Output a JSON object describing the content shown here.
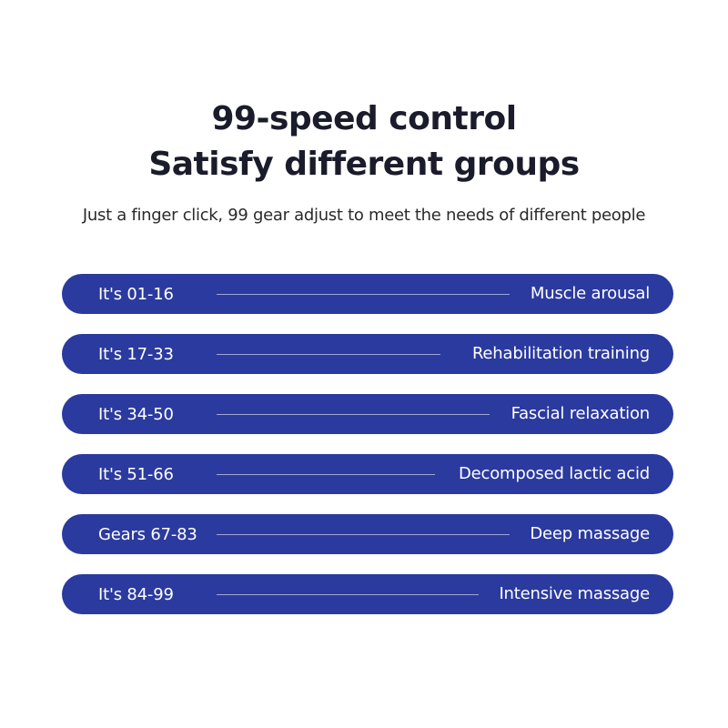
{
  "heading": {
    "line1": "99-speed control",
    "line2": "Satisfy different groups"
  },
  "subheading": "Just a finger click, 99 gear adjust to meet the needs of different people",
  "colors": {
    "bar": "#2b3a9e",
    "title": "#1a1c2b",
    "bar_text": "#ffffff"
  },
  "speed_groups": [
    {
      "range": "It's 01-16",
      "effect": "Muscle arousal"
    },
    {
      "range": "It's 17-33",
      "effect": "Rehabilitation training"
    },
    {
      "range": "It's 34-50",
      "effect": "Fascial relaxation"
    },
    {
      "range": "It's 51-66",
      "effect": "Decomposed lactic acid"
    },
    {
      "range": "Gears 67-83",
      "effect": "Deep massage"
    },
    {
      "range": "It's 84-99",
      "effect": "Intensive massage"
    }
  ]
}
